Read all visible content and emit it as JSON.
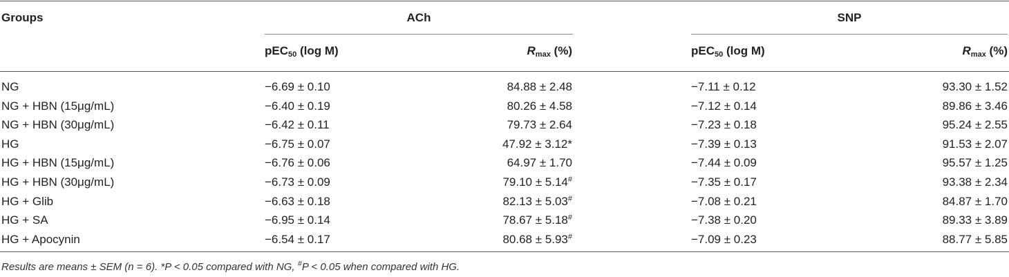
{
  "table": {
    "header": {
      "groups": "Groups",
      "ach": "ACh",
      "snp": "SNP",
      "columns": [
        {
          "text": "pEC",
          "sub": "50",
          "after": " (log M)"
        },
        {
          "italic": "R",
          "sub": "max",
          "after": " (%)"
        },
        {
          "text": "pEC",
          "sub": "50",
          "after": " (log M)"
        },
        {
          "italic": "R",
          "sub": "max",
          "after": " (%)"
        }
      ]
    },
    "rows": [
      [
        "NG",
        "−6.69 ± 0.10",
        "84.88 ± 2.48",
        "−7.11 ± 0.12",
        "93.30 ± 1.52"
      ],
      [
        "NG + HBN (15μg/mL)",
        "−6.40 ± 0.19",
        "80.26 ± 4.58",
        "−7.12 ± 0.14",
        "89.86 ± 3.46"
      ],
      [
        "NG + HBN (30μg/mL)",
        "−6.42 ± 0.11",
        "79.73 ± 2.64",
        "−7.23 ± 0.18",
        "95.24 ± 2.55"
      ],
      [
        "HG",
        "−6.75 ± 0.07",
        "47.92 ± 3.12*",
        "−7.39 ± 0.13",
        "91.53 ± 2.07"
      ],
      [
        "HG + HBN (15μg/mL)",
        "−6.76 ± 0.06",
        "64.97 ± 1.70",
        "−7.44 ± 0.09",
        "95.57 ± 1.25"
      ],
      [
        "HG + HBN (30μg/mL)",
        "−6.73 ± 0.09",
        {
          "text": "79.10 ± 5.14",
          "sup": "#"
        },
        "−7.35 ± 0.17",
        "93.38 ± 2.34"
      ],
      [
        "HG + Glib",
        "−6.63 ± 0.18",
        {
          "text": "82.13 ± 5.03",
          "sup": "#"
        },
        "−7.08 ± 0.21",
        "84.87 ± 1.70"
      ],
      [
        "HG + SA",
        "−6.95 ± 0.14",
        {
          "text": "78.67 ± 5.18",
          "sup": "#"
        },
        "−7.38 ± 0.20",
        "89.33 ± 3.89"
      ],
      [
        "HG + Apocynin",
        "−6.54 ± 0.17",
        {
          "text": "80.68 ± 5.93",
          "sup": "#"
        },
        "−7.09 ± 0.23",
        "88.77 ± 5.85"
      ]
    ]
  },
  "footnote": {
    "text": "Results are means ± SEM (n = 6). *P < 0.05 compared with NG, ",
    "sup": "#",
    "after": "P < 0.05 when compared with HG."
  }
}
